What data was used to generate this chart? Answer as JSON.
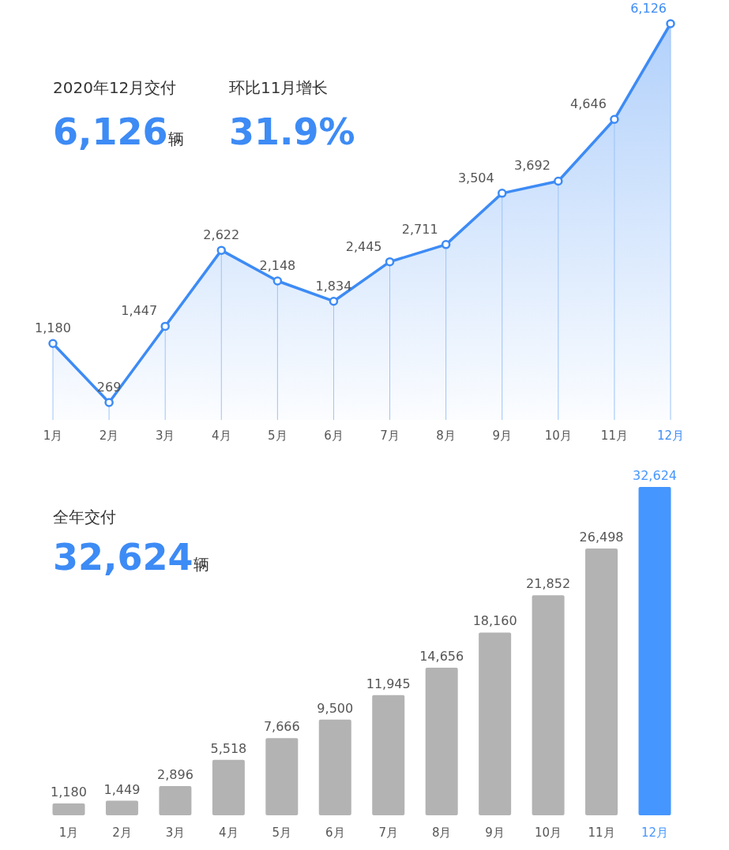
{
  "chart_data": [
    {
      "type": "area",
      "categories": [
        "1月",
        "2月",
        "3月",
        "4月",
        "5月",
        "6月",
        "7月",
        "8月",
        "9月",
        "10月",
        "11月",
        "12月"
      ],
      "series": [
        {
          "color": "#3d8bf5",
          "values": [
            1180,
            269,
            1447,
            2622,
            2148,
            1834,
            2445,
            2711,
            3504,
            3692,
            4646,
            6126
          ],
          "value_labels": [
            "1,180",
            "269",
            "1,447",
            "2,622",
            "2,148",
            "1,834",
            "2,445",
            "2,711",
            "3,504",
            "3,692",
            "4,646",
            "6,126"
          ]
        }
      ],
      "marker": "circle",
      "line_style": "solid",
      "grid": "x",
      "annotations": [
        "2020年12月交付",
        "6,126辆",
        "环比11月增长",
        "31.9%"
      ]
    },
    {
      "type": "bar",
      "categories": [
        "1月",
        "2月",
        "3月",
        "4月",
        "5月",
        "6月",
        "7月",
        "8月",
        "9月",
        "10月",
        "11月",
        "12月"
      ],
      "values": [
        1180,
        1449,
        2896,
        5518,
        7666,
        9500,
        11945,
        14656,
        18160,
        21852,
        26498,
        32624
      ],
      "colors": [
        "#b3b3b3",
        "#b3b3b3",
        "#b3b3b3",
        "#b3b3b3",
        "#b3b3b3",
        "#b3b3b3",
        "#b3b3b3",
        "#b3b3b3",
        "#b3b3b3",
        "#b3b3b3",
        "#b3b3b3",
        "#4596ff"
      ],
      "value_labels": [
        "1,180",
        "1,449",
        "2,896",
        "5,518",
        "7,666",
        "9,500",
        "11,945",
        "14,656",
        "18,160",
        "21,852",
        "26,498",
        "32,624"
      ],
      "annotations": [
        "全年交付",
        "32,624辆"
      ]
    }
  ]
}
